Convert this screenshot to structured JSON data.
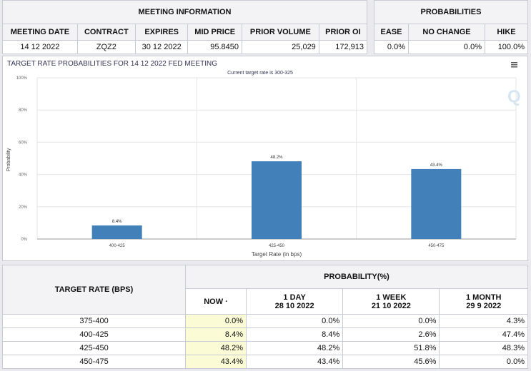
{
  "meeting_info": {
    "title": "MEETING INFORMATION",
    "headers": [
      "MEETING DATE",
      "CONTRACT",
      "EXPIRES",
      "MID PRICE",
      "PRIOR VOLUME",
      "PRIOR OI"
    ],
    "values": [
      "14 12 2022",
      "ZQZ2",
      "30 12 2022",
      "95.8450",
      "25,029",
      "172,913"
    ]
  },
  "probabilities": {
    "title": "PROBABILITIES",
    "headers": [
      "EASE",
      "NO CHANGE",
      "HIKE"
    ],
    "values": [
      "0.0%",
      "0.0%",
      "100.0%"
    ]
  },
  "chart_data": {
    "type": "bar",
    "title": "TARGET RATE PROBABILITIES FOR 14 12 2022 FED MEETING",
    "subtitle": "Current target rate is 300-325",
    "xlabel": "Target Rate (in bps)",
    "ylabel": "Probability",
    "categories": [
      "400-425",
      "425-450",
      "450-475"
    ],
    "values": [
      8.4,
      48.2,
      43.4
    ],
    "labels": [
      "8.4%",
      "48.2%",
      "43.4%"
    ],
    "yticks": [
      "0%",
      "20%",
      "40%",
      "60%",
      "80%",
      "100%"
    ],
    "ylim": [
      0,
      100
    ],
    "color": "#4180b8",
    "menu_icon": "hamburger-icon",
    "watermark": "Q"
  },
  "prob_table": {
    "target_header": "TARGET RATE (BPS)",
    "prob_header": "PROBABILITY(%)",
    "cols": [
      {
        "l1": "NOW",
        "l2": ""
      },
      {
        "l1": "1 DAY",
        "l2": "28 10 2022"
      },
      {
        "l1": "1 WEEK",
        "l2": "21 10 2022"
      },
      {
        "l1": "1 MONTH",
        "l2": "29 9 2022"
      }
    ],
    "rows": [
      {
        "rate": "375-400",
        "vals": [
          "0.0%",
          "0.0%",
          "0.0%",
          "4.3%"
        ]
      },
      {
        "rate": "400-425",
        "vals": [
          "8.4%",
          "8.4%",
          "2.6%",
          "47.4%"
        ]
      },
      {
        "rate": "425-450",
        "vals": [
          "48.2%",
          "48.2%",
          "51.8%",
          "48.3%"
        ]
      },
      {
        "rate": "450-475",
        "vals": [
          "43.4%",
          "43.4%",
          "45.6%",
          "0.0%"
        ]
      }
    ]
  }
}
